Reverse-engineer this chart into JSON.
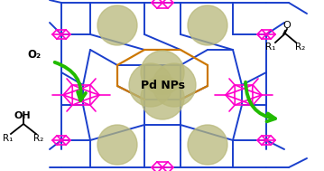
{
  "fig_width": 3.59,
  "fig_height": 1.89,
  "dpi": 100,
  "bg_color": "#ffffff",
  "mof_blue": "#1a3fcc",
  "mof_magenta": "#ff00cc",
  "mof_orange": "#cc7700",
  "pd_nps_color": "#b8b87a",
  "pd_nps_alpha": 0.75,
  "arrow_color": "#22bb00",
  "text_color": "#000000",
  "framework_lw": 1.4,
  "magenta_lw": 1.2,
  "center_label": "Pd NPs",
  "left_top_label": "O₂",
  "left_bot_label1": "OH",
  "left_R1": "R₁",
  "left_R2": "R₂",
  "right_R1": "R₁",
  "right_R2": "R₂"
}
